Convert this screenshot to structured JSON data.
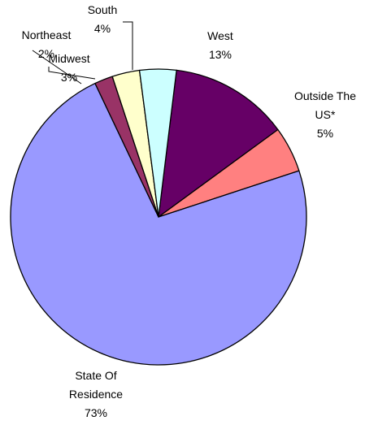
{
  "chart_data": {
    "type": "pie",
    "title": "",
    "slices": [
      {
        "label": "West",
        "value": 13,
        "value_label": "13%",
        "color": "#660066"
      },
      {
        "label": "Outside The US*",
        "value": 5,
        "value_label": "5%",
        "color": "#ff8080"
      },
      {
        "label": "State Of Residence",
        "value": 73,
        "value_label": "73%",
        "color": "#9999ff"
      },
      {
        "label": "Northeast",
        "value": 2,
        "value_label": "2%",
        "color": "#993366"
      },
      {
        "label": "Midwest",
        "value": 3,
        "value_label": "3%",
        "color": "#ffffcc"
      },
      {
        "label": "South",
        "value": 4,
        "value_label": "4%",
        "color": "#ccffff"
      }
    ],
    "legend": "none",
    "outline_color": "#000000"
  }
}
